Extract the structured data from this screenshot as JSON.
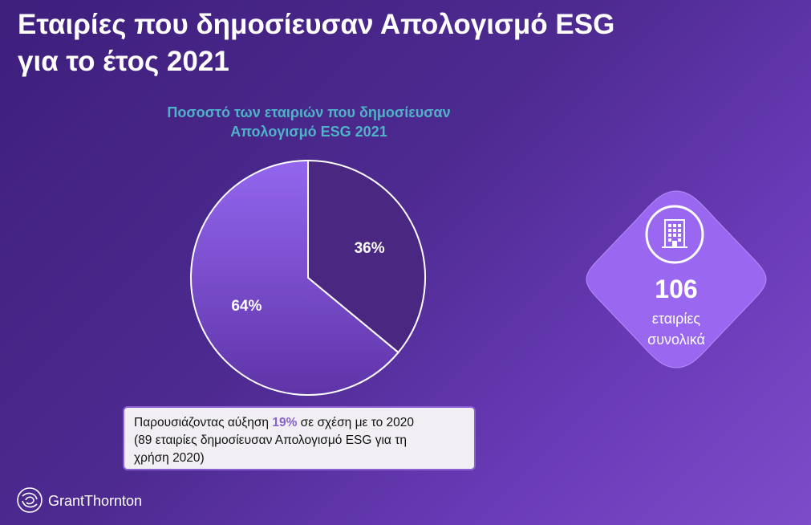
{
  "slide": {
    "title_line1": "Εταιρίες που δημοσίευσαν Απολογισμό ESG",
    "title_line2": "για το έτος 2021"
  },
  "chart_data": {
    "type": "pie",
    "title_line1": "Ποσοστό των εταιριών που δημοσίευσαν",
    "title_line2": "Απολογισμό ESG 2021",
    "slices": [
      {
        "label": "36%",
        "value": 36,
        "color": "#4a2781"
      },
      {
        "label": "64%",
        "value": 64,
        "color": "#8e61e0"
      }
    ]
  },
  "note": {
    "text_before": "Παρουσιάζοντας αύξηση ",
    "highlight": "19%",
    "text_after": " σε σχέση με το 2020",
    "line2": "(89 εταιρίες δημοσίευσαν Απολογισμό ESG για τη",
    "line3": "χρήση 2020)"
  },
  "stat": {
    "number": "106",
    "caption_line1": "εταιρίες",
    "caption_line2": "συνολικά",
    "icon": "building-icon"
  },
  "brand": {
    "name": "GrantThornton",
    "icon": "grant-thornton-logo-icon"
  },
  "colors": {
    "accent": "#8a5fd0",
    "chart_title": "#4fb3c8",
    "diamond": "#9a67f0"
  }
}
